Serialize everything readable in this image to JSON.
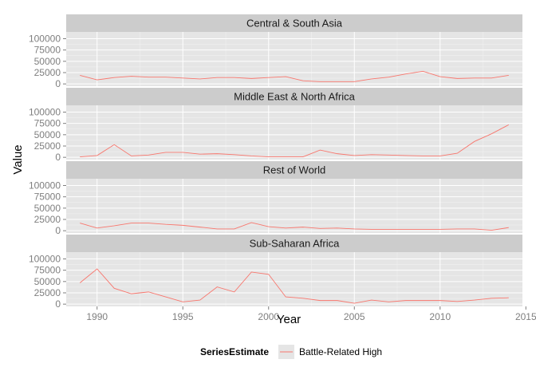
{
  "chart_data": {
    "type": "line",
    "facet_layout": "vertical",
    "xlabel": "Year",
    "ylabel": "Value",
    "xlim": [
      1988.2,
      2014.8
    ],
    "ylim": [
      -5000,
      115000
    ],
    "x_ticks": [
      1990,
      1995,
      2000,
      2005,
      2010,
      2015
    ],
    "y_ticks": [
      0,
      25000,
      50000,
      75000,
      100000
    ],
    "grid": true,
    "legend": {
      "title": "SeriesEstimate",
      "placement": "bottom",
      "entries": [
        {
          "label": "Battle-Related High",
          "color": "#f8766d"
        }
      ]
    },
    "x": [
      1989,
      1990,
      1991,
      1992,
      1993,
      1994,
      1995,
      1996,
      1997,
      1998,
      1999,
      2000,
      2001,
      2002,
      2003,
      2004,
      2005,
      2006,
      2007,
      2008,
      2009,
      2010,
      2011,
      2012,
      2013,
      2014
    ],
    "panels": [
      {
        "title": "Central & South Asia",
        "series": [
          {
            "name": "Battle-Related High",
            "color": "#f8766d",
            "values": [
              19000,
              9000,
              14000,
              17000,
              15000,
              15000,
              13000,
              11000,
              14000,
              14000,
              12000,
              14000,
              16000,
              7000,
              5000,
              5000,
              5000,
              11000,
              15000,
              22000,
              28000,
              16000,
              12000,
              13000,
              13000,
              19000
            ]
          }
        ]
      },
      {
        "title": "Middle East & North Africa",
        "series": [
          {
            "name": "Battle-Related High",
            "color": "#f8766d",
            "values": [
              1000,
              4000,
              28000,
              3000,
              5000,
              11000,
              11000,
              7000,
              8000,
              6000,
              3000,
              1000,
              1000,
              1000,
              16000,
              8000,
              4000,
              6000,
              5000,
              4000,
              3000,
              3000,
              9000,
              35000,
              52000,
              72000
            ]
          }
        ]
      },
      {
        "title": "Rest of World",
        "series": [
          {
            "name": "Battle-Related High",
            "color": "#f8766d",
            "values": [
              17000,
              6000,
              11000,
              17000,
              17000,
              14000,
              12000,
              8000,
              4000,
              4000,
              18000,
              9000,
              6000,
              8000,
              5000,
              6000,
              4000,
              3000,
              3000,
              3000,
              3000,
              3000,
              4000,
              4000,
              1000,
              7000
            ]
          }
        ]
      },
      {
        "title": "Sub-Saharan Africa",
        "series": [
          {
            "name": "Battle-Related High",
            "color": "#f8766d",
            "values": [
              47000,
              78000,
              35000,
              23000,
              27000,
              16000,
              5000,
              9000,
              38000,
              27000,
              71000,
              66000,
              16000,
              13000,
              8000,
              8000,
              2000,
              9000,
              5000,
              8000,
              8000,
              8000,
              6000,
              9000,
              13000,
              14000
            ]
          }
        ]
      }
    ]
  }
}
